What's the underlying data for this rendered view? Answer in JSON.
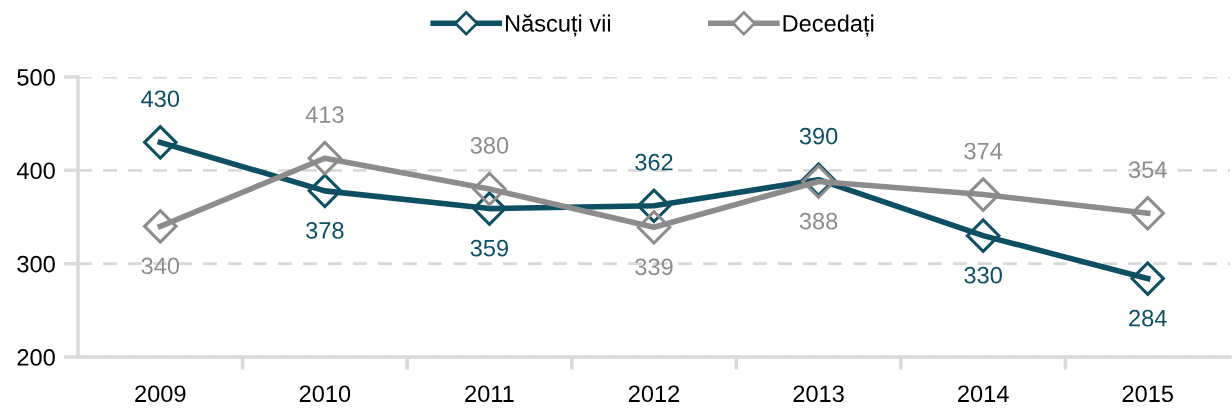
{
  "chart_data": {
    "type": "line",
    "categories": [
      "2009",
      "2010",
      "2011",
      "2012",
      "2013",
      "2014",
      "2015"
    ],
    "series": [
      {
        "name": "Născuți vii",
        "color": "#0e4f62",
        "values": [
          430,
          378,
          359,
          362,
          390,
          330,
          284
        ]
      },
      {
        "name": "Decedați",
        "color": "#8c8c8c",
        "values": [
          340,
          413,
          380,
          339,
          388,
          374,
          354
        ]
      }
    ],
    "ylim": [
      200,
      500
    ],
    "yticks": [
      200,
      300,
      400,
      500
    ],
    "grid": "y",
    "legend": "top",
    "marker": "diamond",
    "line_style": "solid",
    "data_labels": true
  }
}
